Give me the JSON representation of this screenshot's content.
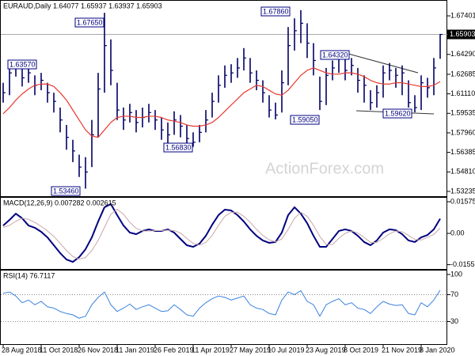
{
  "chart_data": [
    {
      "type": "ohlc",
      "title": "EURAUD,Daily 1.64077 1.65937 1.63937 1.65903",
      "watermark": "ActionForex.com",
      "categories": [
        "28 Aug 2018",
        null,
        null,
        null,
        null,
        null,
        "11 Oct 2018",
        null,
        null,
        null,
        null,
        null,
        "26 Nov 2018",
        null,
        null,
        null,
        null,
        null,
        "11 Jan 2019",
        null,
        null,
        null,
        null,
        null,
        "26 Feb 2019",
        null,
        null,
        null,
        null,
        null,
        "11 Apr 2019",
        null,
        null,
        null,
        null,
        null,
        "27 May 2019",
        null,
        null,
        null,
        null,
        null,
        "10 Jul 2019",
        null,
        null,
        null,
        null,
        null,
        "23 Aug 2019",
        null,
        null,
        null,
        null,
        null,
        "8 Oct 2019",
        null,
        null,
        null,
        null,
        null,
        "21 Nov 2019",
        null,
        null,
        null,
        null,
        null,
        "8 Jan 2020",
        null,
        null,
        null
      ],
      "high": [
        1.62,
        1.632,
        1.6357,
        1.631,
        1.633,
        1.626,
        1.628,
        1.62,
        1.612,
        1.6,
        1.586,
        1.574,
        1.562,
        1.56,
        1.59,
        1.628,
        1.6765,
        1.655,
        1.62,
        1.6,
        1.603,
        1.598,
        1.6,
        1.603,
        1.598,
        1.592,
        1.588,
        1.597,
        1.594,
        1.586,
        1.58,
        1.586,
        1.598,
        1.612,
        1.626,
        1.634,
        1.635,
        1.64,
        1.648,
        1.64,
        1.63,
        1.622,
        1.61,
        1.604,
        1.63,
        1.665,
        1.672,
        1.6786,
        1.668,
        1.652,
        1.625,
        1.632,
        1.638,
        1.6432,
        1.64,
        1.64,
        1.632,
        1.626,
        1.614,
        1.618,
        1.634,
        1.636,
        1.632,
        1.634,
        1.622,
        1.61,
        1.626,
        1.624,
        1.64,
        1.65937
      ],
      "low": [
        1.604,
        1.61,
        1.625,
        1.617,
        1.62,
        1.61,
        1.614,
        1.604,
        1.596,
        1.58,
        1.566,
        1.556,
        1.544,
        1.5346,
        1.552,
        1.576,
        1.612,
        1.618,
        1.59,
        1.582,
        1.588,
        1.58,
        1.584,
        1.588,
        1.582,
        1.574,
        1.57,
        1.578,
        1.576,
        1.569,
        1.5683,
        1.572,
        1.58,
        1.592,
        1.604,
        1.616,
        1.62,
        1.624,
        1.63,
        1.62,
        1.614,
        1.604,
        1.592,
        1.5905,
        1.596,
        1.618,
        1.646,
        1.652,
        1.64,
        1.626,
        1.598,
        1.602,
        1.622,
        1.628,
        1.622,
        1.626,
        1.612,
        1.604,
        1.598,
        1.6,
        1.608,
        1.622,
        1.616,
        1.61,
        1.6,
        1.5962,
        1.598,
        1.608,
        1.61,
        1.63937
      ],
      "close": [
        1.612,
        1.628,
        1.634,
        1.624,
        1.628,
        1.618,
        1.622,
        1.612,
        1.605,
        1.59,
        1.576,
        1.565,
        1.552,
        1.548,
        1.578,
        1.615,
        1.65,
        1.63,
        1.598,
        1.59,
        1.596,
        1.588,
        1.592,
        1.596,
        1.59,
        1.582,
        1.578,
        1.59,
        1.585,
        1.575,
        1.572,
        1.58,
        1.59,
        1.605,
        1.618,
        1.626,
        1.628,
        1.632,
        1.64,
        1.628,
        1.622,
        1.612,
        1.598,
        1.594,
        1.62,
        1.65,
        1.662,
        1.668,
        1.652,
        1.638,
        1.605,
        1.626,
        1.632,
        1.64,
        1.63,
        1.634,
        1.622,
        1.618,
        1.604,
        1.612,
        1.628,
        1.63,
        1.626,
        1.628,
        1.604,
        1.6,
        1.62,
        1.616,
        1.632,
        1.65903
      ],
      "color": "#000066",
      "overlay": {
        "color": "#e8392f",
        "values": [
          1.595,
          1.6,
          1.606,
          1.611,
          1.615,
          1.618,
          1.619,
          1.619,
          1.617,
          1.612,
          1.606,
          1.598,
          1.59,
          1.582,
          1.577,
          1.576,
          1.582,
          1.588,
          1.592,
          1.593,
          1.593,
          1.592,
          1.592,
          1.593,
          1.593,
          1.592,
          1.59,
          1.589,
          1.588,
          1.586,
          1.585,
          1.585,
          1.586,
          1.588,
          1.592,
          1.597,
          1.602,
          1.607,
          1.612,
          1.615,
          1.618,
          1.617,
          1.614,
          1.611,
          1.61,
          1.614,
          1.62,
          1.626,
          1.63,
          1.632,
          1.63,
          1.628,
          1.627,
          1.627,
          1.628,
          1.628,
          1.627,
          1.625,
          1.622,
          1.62,
          1.619,
          1.619,
          1.62,
          1.62,
          1.619,
          1.618,
          1.617,
          1.617,
          1.618,
          1.621
        ]
      },
      "last_value": 1.65903,
      "annotations": [
        "1.63570",
        "1.67650",
        "1.53460",
        "1.56830",
        "1.67860",
        "1.59050",
        "1.64320",
        "1.59620"
      ],
      "ylim": [
        1.5285,
        1.6868
      ],
      "yticks": [
        1.67401,
        {
          "value": 1.6429,
          "label": "1.64290"
        },
        1.62685,
        {
          "value": 1.6111,
          "label": "1.61110"
        },
        1.59535,
        {
          "value": 1.5796,
          "label": "1.57960"
        },
        1.56385,
        {
          "value": 1.5481,
          "label": "1.54810"
        },
        1.53235
      ]
    },
    {
      "type": "line",
      "title": "MACD(12,26,9) 0.007282 0.002615",
      "series": [
        {
          "color": "#000080",
          "width": 2,
          "values": [
            0.0039,
            0.0067,
            0.0098,
            0.0075,
            0.0039,
            0.0028,
            0.0008,
            -0.002,
            -0.0059,
            -0.0098,
            -0.013,
            -0.0142,
            -0.0118,
            -0.0079,
            -0.002,
            0.0059,
            0.013,
            0.0146,
            0.0091,
            0.0039,
            0.0004,
            -0.0004,
            0.0012,
            0.002,
            0.0012,
            0.0012,
            0.002,
            0.0004,
            -0.0028,
            -0.0059,
            -0.0067,
            -0.0051,
            -0.0012,
            0.0043,
            0.0091,
            0.0118,
            0.0114,
            0.0091,
            0.0059,
            0.002,
            -0.0012,
            -0.0035,
            -0.0047,
            -0.0043,
            0.0004,
            0.0091,
            0.013,
            0.0098,
            0.0051,
            -0.0012,
            -0.0067,
            -0.0067,
            -0.0028,
            0.0012,
            0.002,
            0.0012,
            -0.0012,
            -0.0043,
            -0.0059,
            -0.0035,
            0.0004,
            0.002,
            0.0016,
            -0.0004,
            -0.0035,
            -0.0043,
            -0.002,
            -0.0008,
            0.002,
            0.007282
          ]
        },
        {
          "color": "#c8a8a8",
          "width": 1,
          "values": [
            0.003,
            0.004,
            0.006,
            0.0075,
            0.007,
            0.0055,
            0.0035,
            0.0012,
            -0.0015,
            -0.005,
            -0.0085,
            -0.0115,
            -0.0128,
            -0.012,
            -0.0085,
            -0.0035,
            0.003,
            0.0095,
            0.012,
            0.0095,
            0.0055,
            0.0025,
            0.0012,
            0.0012,
            0.0014,
            0.0014,
            0.0016,
            0.0014,
            0.0002,
            -0.0025,
            -0.005,
            -0.0058,
            -0.0045,
            -0.001,
            0.004,
            0.0085,
            0.0105,
            0.0105,
            0.0085,
            0.0055,
            0.002,
            -0.001,
            -0.0032,
            -0.0042,
            -0.0028,
            0.002,
            0.0075,
            0.0105,
            0.0085,
            0.004,
            -0.0015,
            -0.0055,
            -0.0055,
            -0.0025,
            0,
            0.0012,
            0.0002,
            -0.002,
            -0.0045,
            -0.0045,
            -0.0025,
            -0.0002,
            0.0012,
            0.0008,
            -0.001,
            -0.003,
            -0.0033,
            -0.002,
            -0.0005,
            0.002615
          ]
        }
      ],
      "ylim": [
        -0.0177,
        0.0181
      ],
      "yticks": [
        0.01575,
        {
          "value": 0,
          "label": "0.00"
        },
        -0.015568
      ]
    },
    {
      "type": "line",
      "title": "RSI(14) 76.7117",
      "series": [
        {
          "color": "#3b82e0",
          "width": 1,
          "values": [
            72,
            74,
            68,
            58,
            62,
            55,
            60,
            52,
            50,
            45,
            42,
            40,
            35,
            38,
            55,
            66,
            74,
            55,
            45,
            50,
            56,
            48,
            52,
            55,
            50,
            45,
            46,
            55,
            48,
            40,
            38,
            50,
            58,
            64,
            68,
            66,
            62,
            65,
            68,
            55,
            50,
            48,
            42,
            40,
            62,
            74,
            70,
            76,
            60,
            55,
            38,
            55,
            60,
            64,
            55,
            58,
            50,
            48,
            42,
            52,
            60,
            56,
            54,
            55,
            42,
            40,
            58,
            52,
            62,
            76.7117
          ]
        }
      ],
      "levels": [
        70,
        30
      ],
      "ylim": [
        -3.5,
        107
      ],
      "yticks": [
        100,
        70,
        30
      ]
    }
  ]
}
